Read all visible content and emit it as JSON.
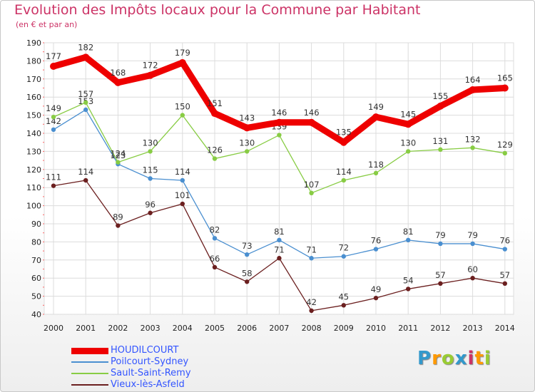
{
  "title": "Evolution des Impôts locaux pour la Commune par Habitant",
  "subtitle": "(en € et par an)",
  "logo": {
    "text": "Proxiti",
    "letters": [
      "P",
      "r",
      "o",
      "x",
      "i",
      "t",
      "i"
    ],
    "colors": [
      "#3399cc",
      "#ff9900",
      "#99cc33",
      "#3399cc",
      "#cc3366",
      "#ff9900",
      "#99cc33"
    ]
  },
  "chart_data": {
    "type": "line",
    "title": "Evolution des Impôts locaux pour la Commune par Habitant",
    "subtitle": "(en € et par an)",
    "x": [
      "2000",
      "2001",
      "2002",
      "2003",
      "2004",
      "2005",
      "2006",
      "2007",
      "2008",
      "2009",
      "2010",
      "2011",
      "2012",
      "2013",
      "2014"
    ],
    "y_ticks": [
      40,
      50,
      60,
      70,
      80,
      90,
      100,
      110,
      120,
      130,
      140,
      150,
      160,
      170,
      180,
      190
    ],
    "ylim": [
      40,
      190
    ],
    "grid": true,
    "legend_position": "bottom-left",
    "series": [
      {
        "name": "HOUDILCOURT",
        "color": "#ee0000",
        "width": "thick",
        "values": [
          177,
          182,
          168,
          172,
          179,
          151,
          143,
          146,
          146,
          135,
          149,
          145,
          155,
          164,
          165
        ]
      },
      {
        "name": "Poilcourt-Sydney",
        "color": "#4a8fd0",
        "width": "thin",
        "values": [
          142,
          153,
          123,
          115,
          114,
          82,
          73,
          81,
          71,
          72,
          76,
          81,
          79,
          79,
          76
        ]
      },
      {
        "name": "Sault-Saint-Remy",
        "color": "#88cc44",
        "width": "thin",
        "values": [
          149,
          157,
          124,
          130,
          150,
          126,
          130,
          139,
          107,
          114,
          118,
          130,
          131,
          132,
          129
        ]
      },
      {
        "name": "Vieux-lès-Asfeld",
        "color": "#6b1f1f",
        "width": "thin",
        "values": [
          111,
          114,
          89,
          96,
          101,
          66,
          58,
          71,
          42,
          45,
          49,
          54,
          57,
          60,
          57
        ]
      }
    ]
  }
}
